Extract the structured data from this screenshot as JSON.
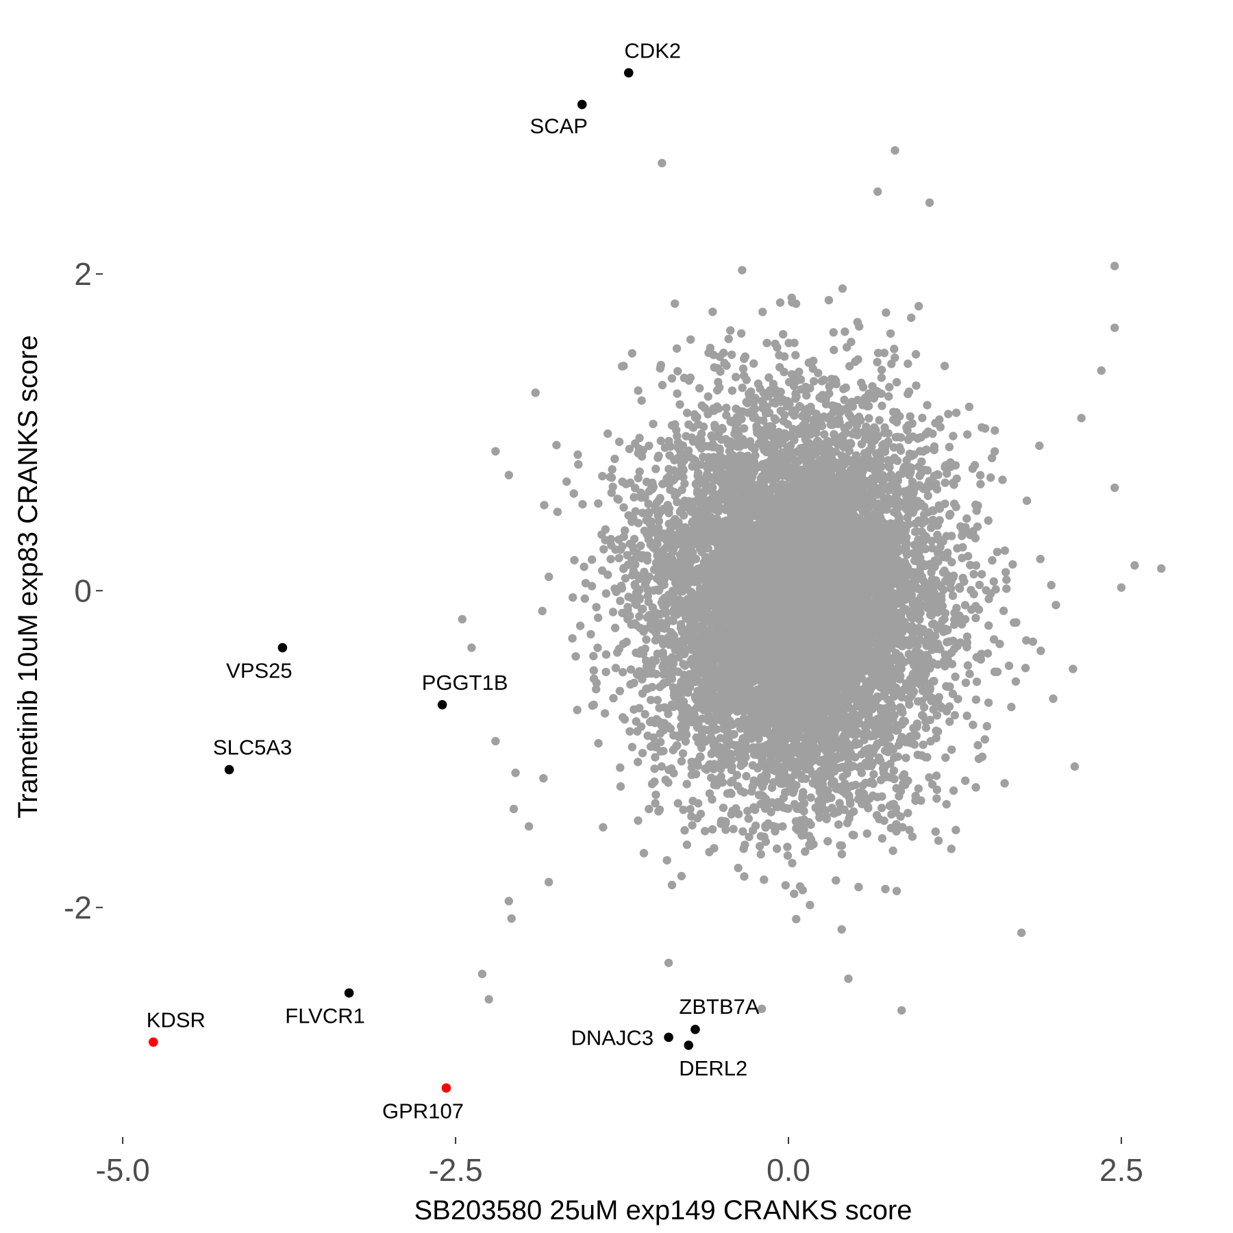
{
  "chart_data": {
    "type": "scatter",
    "xlabel": "SB203580 25uM exp149 CRANKS score",
    "ylabel": "Trametinib 10uM exp83 CRANKS score",
    "xlim": [
      -5.15,
      2.85
    ],
    "ylim": [
      -3.45,
      3.6
    ],
    "x_ticks": [
      -5.0,
      -2.5,
      0.0,
      2.5
    ],
    "x_tick_labels": [
      "-5.0",
      "-2.5",
      "0.0",
      "2.5"
    ],
    "y_ticks": [
      -2,
      0,
      2
    ],
    "y_tick_labels": [
      "-2",
      "0",
      "2"
    ],
    "grid": false,
    "legend": "none",
    "colors": {
      "background_points": "#a0a0a0",
      "highlight": "#000000",
      "highlight_red": "#ff0000"
    },
    "background_cloud": {
      "description_color": "#a0a0a0",
      "center": [
        0.05,
        -0.05
      ],
      "sd": [
        0.55,
        0.6
      ],
      "approx_n": 9000
    },
    "background_outliers": [
      {
        "x": -0.95,
        "y": 2.7
      },
      {
        "x": 0.8,
        "y": 2.78
      },
      {
        "x": 0.67,
        "y": 2.52
      },
      {
        "x": 1.06,
        "y": 2.45
      },
      {
        "x": 2.45,
        "y": 2.05
      },
      {
        "x": 2.45,
        "y": 1.66
      },
      {
        "x": 2.35,
        "y": 1.39
      },
      {
        "x": 2.2,
        "y": 1.09
      },
      {
        "x": 2.45,
        "y": 0.65
      },
      {
        "x": 2.6,
        "y": 0.16
      },
      {
        "x": 2.8,
        "y": 0.14
      },
      {
        "x": 2.5,
        "y": 0.02
      },
      {
        "x": -2.2,
        "y": 0.88
      },
      {
        "x": -2.1,
        "y": 0.73
      },
      {
        "x": -1.9,
        "y": 1.25
      },
      {
        "x": -2.45,
        "y": -0.18
      },
      {
        "x": -2.38,
        "y": -0.36
      },
      {
        "x": -2.2,
        "y": -0.95
      },
      {
        "x": -2.05,
        "y": -1.15
      },
      {
        "x": -2.1,
        "y": -1.96
      },
      {
        "x": -2.08,
        "y": -2.07
      },
      {
        "x": -2.3,
        "y": -2.42
      },
      {
        "x": -2.25,
        "y": -2.58
      },
      {
        "x": -1.8,
        "y": -1.84
      },
      {
        "x": 2.15,
        "y": -1.11
      },
      {
        "x": 1.75,
        "y": -2.16
      },
      {
        "x": 0.85,
        "y": -2.65
      },
      {
        "x": 0.45,
        "y": -2.45
      },
      {
        "x": -0.2,
        "y": -2.64
      },
      {
        "x": -0.9,
        "y": -2.35
      }
    ],
    "highlighted": [
      {
        "label": "CDK2",
        "x": -1.2,
        "y": 3.27,
        "color": "#000000"
      },
      {
        "label": "SCAP",
        "x": -1.55,
        "y": 3.07,
        "color": "#000000"
      },
      {
        "label": "VPS25",
        "x": -3.8,
        "y": -0.36,
        "color": "#000000"
      },
      {
        "label": "PGGT1B",
        "x": -2.6,
        "y": -0.72,
        "color": "#000000"
      },
      {
        "label": "SLC5A3",
        "x": -4.2,
        "y": -1.13,
        "color": "#000000"
      },
      {
        "label": "FLVCR1",
        "x": -3.3,
        "y": -2.54,
        "color": "#000000"
      },
      {
        "label": "KDSR",
        "x": -4.77,
        "y": -2.85,
        "color": "#ff0000"
      },
      {
        "label": "GPR107",
        "x": -2.57,
        "y": -3.14,
        "color": "#ff0000"
      },
      {
        "label": "ZBTB7A",
        "x": -0.7,
        "y": -2.77,
        "color": "#000000"
      },
      {
        "label": "DNAJC3",
        "x": -0.9,
        "y": -2.82,
        "color": "#000000"
      },
      {
        "label": "DERL2",
        "x": -0.75,
        "y": -2.87,
        "color": "#000000"
      }
    ]
  }
}
